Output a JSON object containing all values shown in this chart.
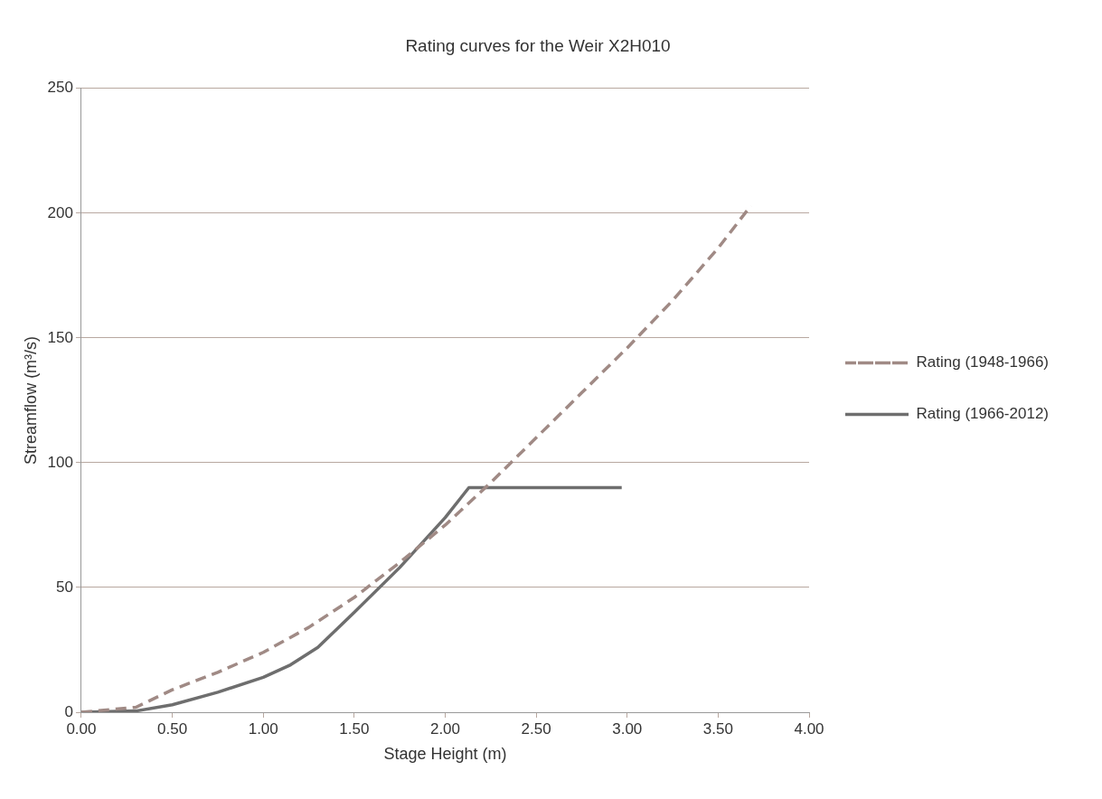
{
  "chart_data": {
    "type": "line",
    "title": "Rating curves for the Weir X2H010",
    "xlabel": "Stage Height (m)",
    "ylabel": "Streamflow (m³/s)",
    "xlim": [
      0,
      4
    ],
    "xticks": [
      {
        "value": 0,
        "label": "0.00"
      },
      {
        "value": 0.5,
        "label": "0.50"
      },
      {
        "value": 1,
        "label": "1.00"
      },
      {
        "value": 1.5,
        "label": "1.50"
      },
      {
        "value": 2,
        "label": "2.00"
      },
      {
        "value": 2.5,
        "label": "2.50"
      },
      {
        "value": 3,
        "label": "3.00"
      },
      {
        "value": 3.5,
        "label": "3.50"
      },
      {
        "value": 4,
        "label": "4.00"
      }
    ],
    "ylim": [
      0,
      250
    ],
    "yticks": [
      0,
      50,
      100,
      150,
      200,
      250
    ],
    "grid": "y",
    "legend": "right",
    "marker": "none",
    "series": [
      {
        "name": "Rating (1948-1966)",
        "color": "#a08a85",
        "line_style": "dashed",
        "x": [
          0,
          0.3,
          0.5,
          0.75,
          1,
          1.25,
          1.5,
          1.75,
          2,
          2.25,
          2.5,
          2.75,
          3,
          3.25,
          3.5,
          3.68
        ],
        "values": [
          0,
          2,
          9,
          16,
          24,
          34,
          46,
          60,
          75,
          92,
          110,
          128,
          146,
          165,
          186,
          203
        ]
      },
      {
        "name": "Rating (1966-2012)",
        "color": "#6e6e6e",
        "line_style": "solid",
        "x": [
          0,
          0.3,
          0.5,
          0.75,
          1,
          1.15,
          1.3,
          1.5,
          1.75,
          2,
          2.13,
          2.97
        ],
        "values": [
          0,
          0.5,
          3,
          8,
          14,
          19,
          26,
          40,
          58,
          78,
          90,
          90
        ]
      }
    ]
  }
}
